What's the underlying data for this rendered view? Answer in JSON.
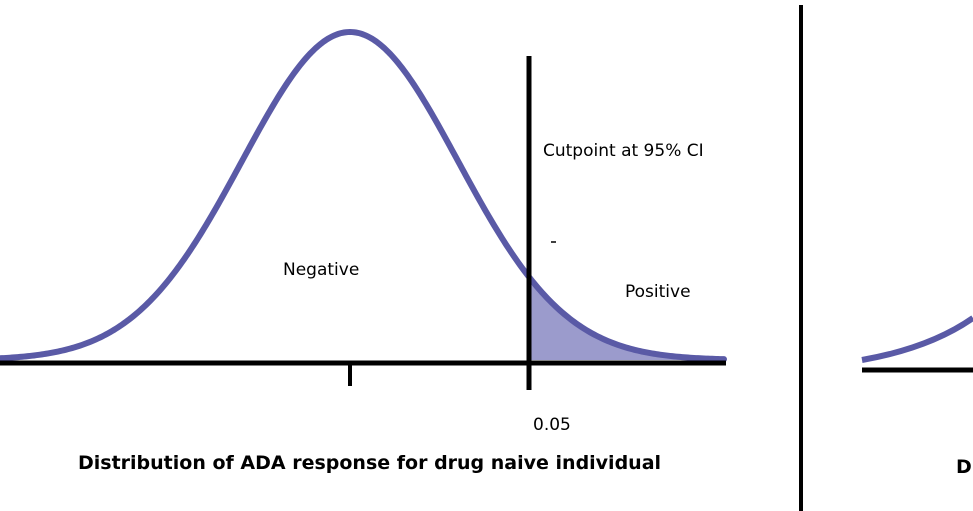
{
  "panels": [
    {
      "name": "drug-naive",
      "labels": {
        "cutpoint": "Cutpoint at 95% CI",
        "negative": "Negative",
        "positive": "Positive",
        "tick_value": "0.05",
        "caption": "Distribution of ADA response for drug naive individual"
      }
    },
    {
      "name": "second-panel-partial",
      "labels": {
        "caption_fragment": "Di"
      }
    }
  ],
  "colors": {
    "curve": "#5a5aa6",
    "shaded_region": "#9b9bcc",
    "axis": "#000000",
    "text": "#000000"
  }
}
